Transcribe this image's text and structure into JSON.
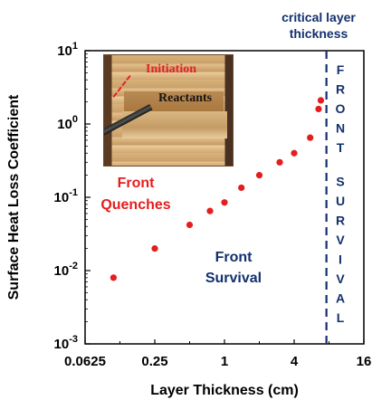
{
  "chart_data": {
    "type": "scatter",
    "xlabel": "Layer Thickness (cm)",
    "ylabel": "Surface Heat Loss Coefficient",
    "x_scale": "log2",
    "y_scale": "log10",
    "xlim": [
      0.0625,
      16
    ],
    "ylim": [
      0.001,
      10
    ],
    "x_ticks": [
      "0.0625",
      "0.25",
      "1",
      "4",
      "16"
    ],
    "x_tick_values": [
      0.0625,
      0.25,
      1,
      4,
      16
    ],
    "y_ticks": [
      {
        "base": "10",
        "exp": "-3"
      },
      {
        "base": "10",
        "exp": "-2"
      },
      {
        "base": "10",
        "exp": "-1"
      },
      {
        "base": "10",
        "exp": "0"
      },
      {
        "base": "10",
        "exp": "1"
      }
    ],
    "y_tick_values": [
      0.001,
      0.01,
      0.1,
      1,
      10
    ],
    "series": [
      {
        "color": "#e41e1e",
        "x": [
          0.11,
          0.25,
          0.5,
          0.75,
          1.0,
          1.4,
          2.0,
          3.0,
          4.0,
          5.5,
          6.5,
          6.8
        ],
        "y": [
          0.008,
          0.02,
          0.042,
          0.065,
          0.085,
          0.135,
          0.2,
          0.3,
          0.4,
          0.65,
          1.6,
          2.1
        ]
      }
    ],
    "critical_line": {
      "x": 7.6,
      "color": "#13306e"
    },
    "annotations": {
      "critical": [
        "critical layer",
        "thickness"
      ],
      "front_quenches": [
        "Front",
        "Quenches"
      ],
      "front_survival": [
        "Front",
        "Survival"
      ],
      "vertical_survival": "FRONT SURVIVAL"
    },
    "colors": {
      "red": "#e41e1e",
      "navy": "#13306e"
    }
  },
  "inset_photo": {
    "label_initiation": "Initiation",
    "label_reactants": "Reactants"
  }
}
